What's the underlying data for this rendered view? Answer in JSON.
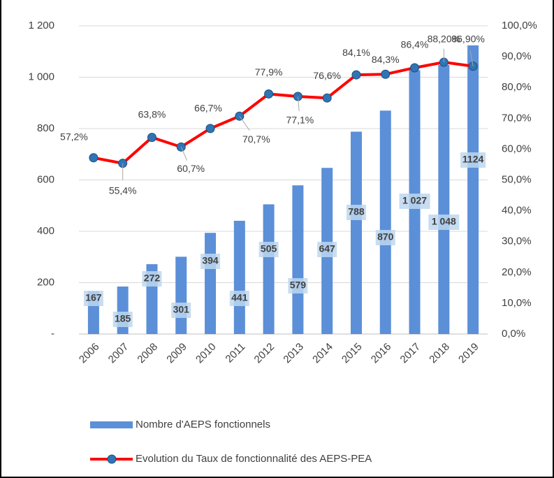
{
  "chart_data": {
    "type": "bar_line",
    "categories": [
      "2006",
      "2007",
      "2008",
      "2009",
      "2010",
      "2011",
      "2012",
      "2013",
      "2014",
      "2015",
      "2016",
      "2017",
      "2018",
      "2019"
    ],
    "series": [
      {
        "name": "Nombre d'AEPS fonctionnels",
        "type": "bar",
        "color": "#5b8fd8",
        "values": [
          167,
          185,
          272,
          301,
          394,
          441,
          505,
          579,
          647,
          788,
          870,
          1027,
          1048,
          1124
        ],
        "value_labels": [
          "167",
          "185",
          "272",
          "301",
          "394",
          "441",
          "505",
          "579",
          "647",
          "788",
          "870",
          "1 027",
          "1 048",
          "1124"
        ]
      },
      {
        "name": "Evolution du Taux de fonctionnalité des AEPS-PEA",
        "type": "line",
        "axis": "y2",
        "color": "#ff0000",
        "marker_color": "#2e75b6",
        "values": [
          57.2,
          55.4,
          63.8,
          60.7,
          66.7,
          70.7,
          77.9,
          77.1,
          76.6,
          84.1,
          84.3,
          86.4,
          88.2,
          86.9
        ],
        "value_labels": [
          "57,2%",
          "55,4%",
          "63,8%",
          "60,7%",
          "66,7%",
          "70,7%",
          "77,9%",
          "77,1%",
          "76,6%",
          "84,1%",
          "84,3%",
          "86,4%",
          "88,20%",
          "86,90%"
        ]
      }
    ],
    "ylim": [
      0,
      1200
    ],
    "yticks": [
      {
        "value": 0,
        "label": "-"
      },
      200,
      400,
      600,
      800,
      {
        "value": 1000,
        "label": "1 000"
      },
      {
        "value": 1200,
        "label": "1 200"
      }
    ],
    "y2lim": [
      0,
      100
    ],
    "y2ticks": [
      {
        "value": 0,
        "label": "0,0%"
      },
      {
        "value": 10,
        "label": "10,0%"
      },
      {
        "value": 20,
        "label": "20,0%"
      },
      {
        "value": 30,
        "label": "30,0%"
      },
      {
        "value": 40,
        "label": "40,0%"
      },
      {
        "value": 50,
        "label": "50,0%"
      },
      {
        "value": 60,
        "label": "60,0%"
      },
      {
        "value": 70,
        "label": "70,0%"
      },
      {
        "value": 80,
        "label": "80,0%"
      },
      {
        "value": 90,
        "label": "90,0%"
      },
      {
        "value": 100,
        "label": "100,0%"
      }
    ],
    "grid": true,
    "legend": "bottom"
  }
}
